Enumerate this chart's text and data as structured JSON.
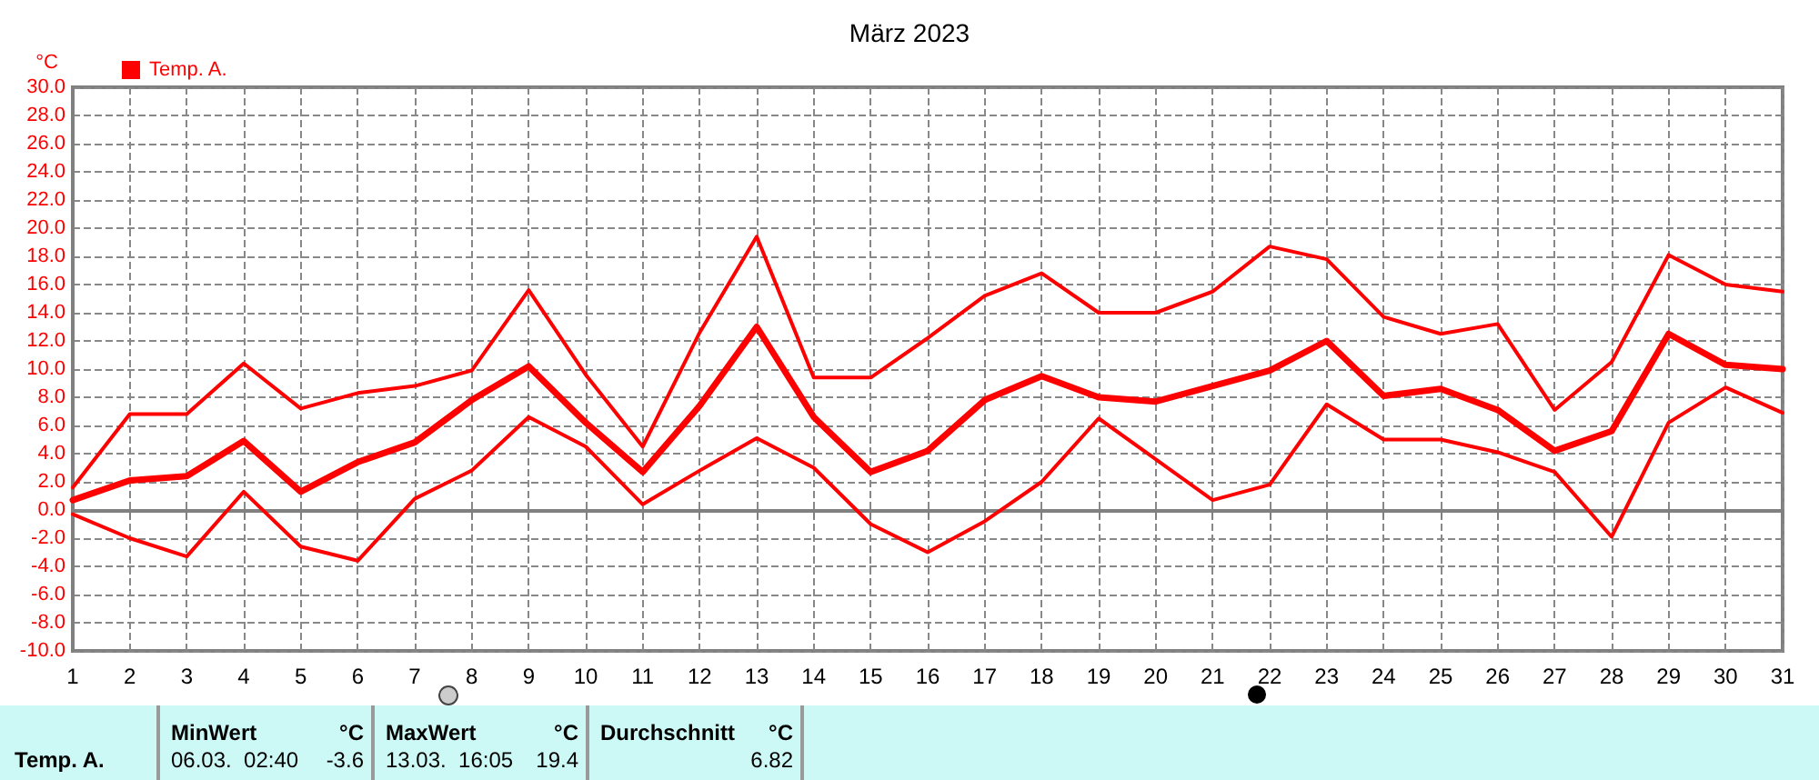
{
  "chart_data": {
    "type": "line",
    "title": "März 2023",
    "ylabel": "°C",
    "legend": "top left",
    "grid": true,
    "marker": "none",
    "line_style": "solid",
    "x": [
      1,
      2,
      3,
      4,
      5,
      6,
      7,
      8,
      9,
      10,
      11,
      12,
      13,
      14,
      15,
      16,
      17,
      18,
      19,
      20,
      21,
      22,
      23,
      24,
      25,
      26,
      27,
      28,
      29,
      30,
      31
    ],
    "xlim": [
      1,
      31
    ],
    "xticks": [
      1,
      2,
      3,
      4,
      5,
      6,
      7,
      8,
      9,
      10,
      11,
      12,
      13,
      14,
      15,
      16,
      17,
      18,
      19,
      20,
      21,
      22,
      23,
      24,
      25,
      26,
      27,
      28,
      29,
      30,
      31
    ],
    "ylim": [
      -10,
      30
    ],
    "yticks": [
      {
        "value": -10,
        "label": "-10.0"
      },
      {
        "value": -8,
        "label": "-8.0"
      },
      {
        "value": -6,
        "label": "-6.0"
      },
      {
        "value": -4,
        "label": "-4.0"
      },
      {
        "value": -2,
        "label": "-2.0"
      },
      {
        "value": 0,
        "label": "0.0"
      },
      {
        "value": 2,
        "label": "2.0"
      },
      {
        "value": 4,
        "label": "4.0"
      },
      {
        "value": 6,
        "label": "6.0"
      },
      {
        "value": 8,
        "label": "8.0"
      },
      {
        "value": 10,
        "label": "10.0"
      },
      {
        "value": 12,
        "label": "12.0"
      },
      {
        "value": 14,
        "label": "14.0"
      },
      {
        "value": 16,
        "label": "16.0"
      },
      {
        "value": 18,
        "label": "18.0"
      },
      {
        "value": 20,
        "label": "20.0"
      },
      {
        "value": 22,
        "label": "22.0"
      },
      {
        "value": 24,
        "label": "24.0"
      },
      {
        "value": 26,
        "label": "26.0"
      },
      {
        "value": 28,
        "label": "28.0"
      },
      {
        "value": 30,
        "label": "30.0"
      }
    ],
    "series": [
      {
        "color": "#ff0000",
        "values": [
          1.6,
          6.8,
          6.8,
          10.4,
          7.2,
          8.3,
          8.8,
          9.9,
          15.6,
          9.6,
          4.5,
          12.6,
          19.4,
          9.4,
          9.4,
          12.2,
          15.2,
          16.8,
          14.0,
          14.0,
          15.5,
          18.7,
          17.8,
          13.7,
          12.5,
          13.2,
          7.1,
          10.5,
          18.1,
          16.0,
          15.5
        ]
      },
      {
        "name": "Temp. A.",
        "color": "#ff0000",
        "values": [
          0.7,
          2.1,
          2.4,
          4.9,
          1.3,
          3.4,
          4.8,
          7.8,
          10.2,
          6.2,
          2.7,
          7.4,
          13.0,
          6.6,
          2.7,
          4.2,
          7.8,
          9.5,
          8.0,
          7.7,
          8.8,
          9.9,
          12.0,
          8.1,
          8.6,
          7.1,
          4.2,
          5.6,
          12.5,
          10.3,
          10.0
        ]
      },
      {
        "color": "#ff0000",
        "values": [
          -0.3,
          -2.0,
          -3.3,
          1.3,
          -2.6,
          -3.6,
          0.8,
          2.8,
          6.6,
          4.5,
          0.4,
          2.8,
          5.1,
          3.0,
          -1.0,
          -3.0,
          -0.8,
          2.0,
          6.5,
          3.6,
          0.7,
          1.8,
          7.5,
          5.0,
          5.0,
          4.1,
          2.7,
          -1.9,
          6.2,
          8.7,
          6.9
        ]
      }
    ],
    "annotations": [
      "Temp. A.",
      "MinWert",
      "°C",
      "06.03.  02:40",
      "-3.6",
      "MaxWert",
      "°C",
      "13.03.  16:05",
      "19.4",
      "Durchschnitt",
      "°C",
      "6.82"
    ]
  }
}
